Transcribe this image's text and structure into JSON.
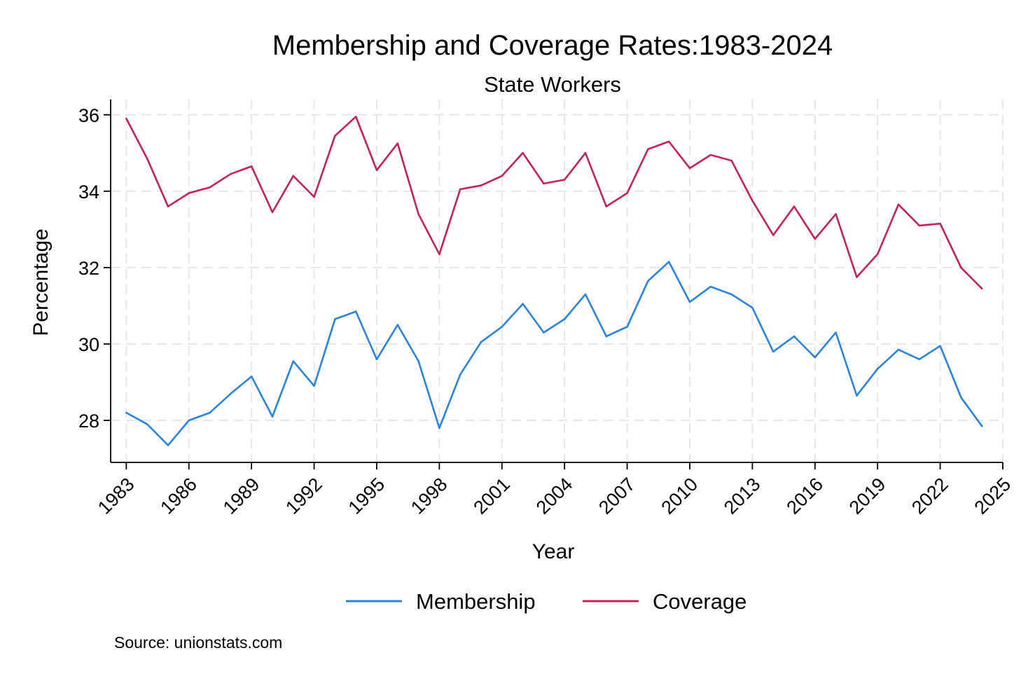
{
  "chart_data": {
    "type": "line",
    "title": "Membership and Coverage Rates:1983-2024",
    "subtitle": "State Workers",
    "xlabel": "Year",
    "ylabel": "Percentage",
    "xlim": [
      1982.25,
      2025
    ],
    "ylim": [
      26.9,
      36.4
    ],
    "x_ticks": [
      1983,
      1986,
      1989,
      1992,
      1995,
      1998,
      2001,
      2004,
      2007,
      2010,
      2013,
      2016,
      2019,
      2022,
      2025
    ],
    "y_ticks": [
      28,
      30,
      32,
      34,
      36
    ],
    "grid": true,
    "legend_position": "bottom",
    "note": "Source: unionstats.com",
    "x": [
      1983,
      1984,
      1985,
      1986,
      1987,
      1988,
      1989,
      1990,
      1991,
      1992,
      1993,
      1994,
      1995,
      1996,
      1997,
      1998,
      1999,
      2000,
      2001,
      2002,
      2003,
      2004,
      2005,
      2006,
      2007,
      2008,
      2009,
      2010,
      2011,
      2012,
      2013,
      2014,
      2015,
      2016,
      2017,
      2018,
      2019,
      2020,
      2021,
      2022,
      2023,
      2024
    ],
    "series": [
      {
        "name": "Membership",
        "color": "#2a85e0",
        "values": [
          28.2,
          27.9,
          27.35,
          28.0,
          28.2,
          28.7,
          29.15,
          28.1,
          29.55,
          28.9,
          30.65,
          30.85,
          29.6,
          30.5,
          29.55,
          27.8,
          29.2,
          30.05,
          30.45,
          31.05,
          30.3,
          30.65,
          31.3,
          30.2,
          30.45,
          31.65,
          32.15,
          31.1,
          31.5,
          31.3,
          30.95,
          29.8,
          30.2,
          29.65,
          30.3,
          28.65,
          29.35,
          29.85,
          29.6,
          29.95,
          28.6,
          27.85
        ]
      },
      {
        "name": "Coverage",
        "color": "#c8205f",
        "values": [
          35.9,
          34.85,
          33.6,
          33.95,
          34.1,
          34.45,
          34.65,
          33.45,
          34.4,
          33.85,
          35.45,
          35.95,
          34.55,
          35.25,
          33.4,
          32.35,
          34.05,
          34.15,
          34.4,
          35.0,
          34.2,
          34.3,
          35.0,
          33.6,
          33.95,
          35.1,
          35.3,
          34.6,
          34.95,
          34.8,
          33.75,
          32.85,
          33.6,
          32.75,
          33.4,
          31.75,
          32.35,
          33.65,
          33.1,
          33.15,
          32.0,
          31.45
        ]
      }
    ]
  }
}
